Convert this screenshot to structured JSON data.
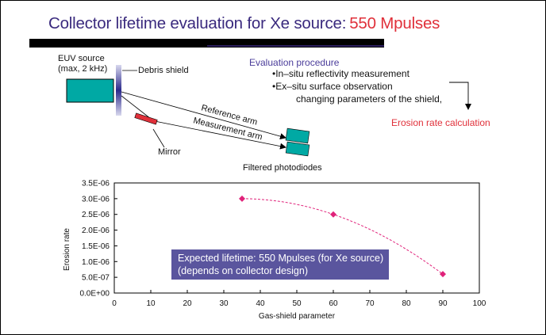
{
  "slide": {
    "title": "Collector lifetime evaluation for Xe source:",
    "title_accent": "550 Mpulses",
    "colors": {
      "title": "#3a2a7e",
      "accent_red": "#e0303a",
      "teal": "#00a9a4",
      "mirror": "#e0303a",
      "marker": "#e0227a",
      "annotation_bg": "#5a559e"
    }
  },
  "diagram": {
    "source_label_line1": "EUV source",
    "source_label_line2": "(max, 2 kHz)",
    "debris_shield_label": "Debris shield",
    "mirror_label": "Mirror",
    "reference_arm_label": "Reference arm",
    "measurement_arm_label": "Measurement arm",
    "photodiodes_label": "Filtered photodiodes"
  },
  "procedure": {
    "title": "Evaluation procedure",
    "items": [
      "•In–situ reflectivity measurement",
      "•Ex–situ surface observation"
    ],
    "sub_item": "changing parameters of the shield,",
    "result": "Erosion rate calculation"
  },
  "annotation": {
    "line1": "Expected lifetime: 550 Mpulses (for Xe source)",
    "line2": "(depends on collector design)"
  },
  "chart_data": {
    "type": "line",
    "title": "",
    "xlabel": "Gas-shield parameter",
    "ylabel": "Erosion rate",
    "xlim": [
      0,
      100
    ],
    "ylim": [
      0,
      3.5e-06
    ],
    "x_ticks": [
      "0",
      "10",
      "20",
      "30",
      "40",
      "50",
      "60",
      "70",
      "80",
      "90",
      "100"
    ],
    "x_tick_values": [
      0,
      10,
      20,
      30,
      40,
      50,
      60,
      70,
      80,
      90,
      100
    ],
    "y_ticks": [
      "0.0E+00",
      "5.0E-07",
      "1.0E-06",
      "1.5E-06",
      "2.0E-06",
      "2.5E-06",
      "3.0E-06",
      "3.5E-06"
    ],
    "y_tick_values": [
      0,
      5e-07,
      1e-06,
      1.5e-06,
      2e-06,
      2.5e-06,
      3e-06,
      3.5e-06
    ],
    "grid": false,
    "legend": "none",
    "series": [
      {
        "name": "Erosion rate",
        "x": [
          35,
          60,
          90
        ],
        "y": [
          3e-06,
          2.5e-06,
          6e-07
        ],
        "marker": "diamond",
        "trendline": "dashed polynomial fit"
      }
    ]
  }
}
